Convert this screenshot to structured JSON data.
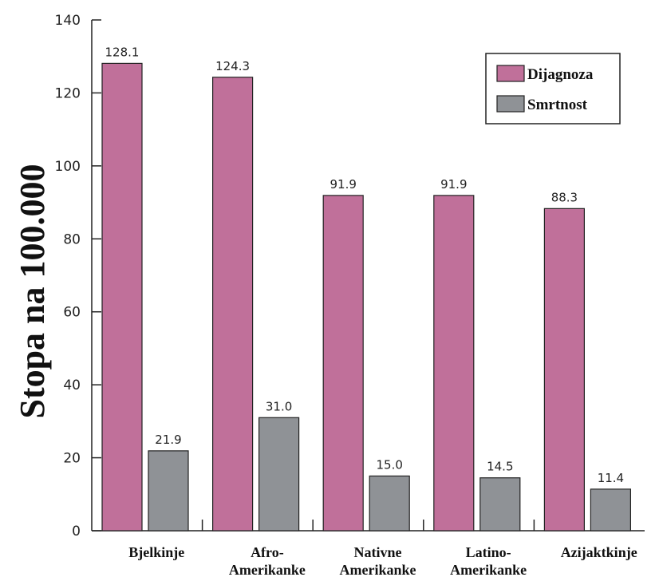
{
  "chart_data": {
    "type": "bar",
    "ylabel": "Stopa na 100.000",
    "ylim": [
      0,
      140
    ],
    "yticks": [
      0,
      20,
      40,
      60,
      80,
      100,
      120,
      140
    ],
    "categories": [
      [
        "Bjelkinje"
      ],
      [
        "Afro-",
        "Amerikanke"
      ],
      [
        "Nativne",
        "Amerikanke"
      ],
      [
        "Latino-",
        "Amerikanke"
      ],
      [
        "Azijaktkinje"
      ]
    ],
    "series": [
      {
        "name": "Dijagnoza",
        "color": "#c0709a",
        "values": [
          128.1,
          124.3,
          91.9,
          91.9,
          88.3
        ],
        "labels": [
          "128.1",
          "124.3",
          "91.9",
          "91.9",
          "88.3"
        ]
      },
      {
        "name": "Smrtnost",
        "color": "#8f9296",
        "values": [
          21.9,
          31.0,
          15.0,
          14.5,
          11.4
        ],
        "labels": [
          "21.9",
          "31.0",
          "15.0",
          "14.5",
          "11.4"
        ]
      }
    ],
    "legend_position": "top-right",
    "grid": false
  }
}
